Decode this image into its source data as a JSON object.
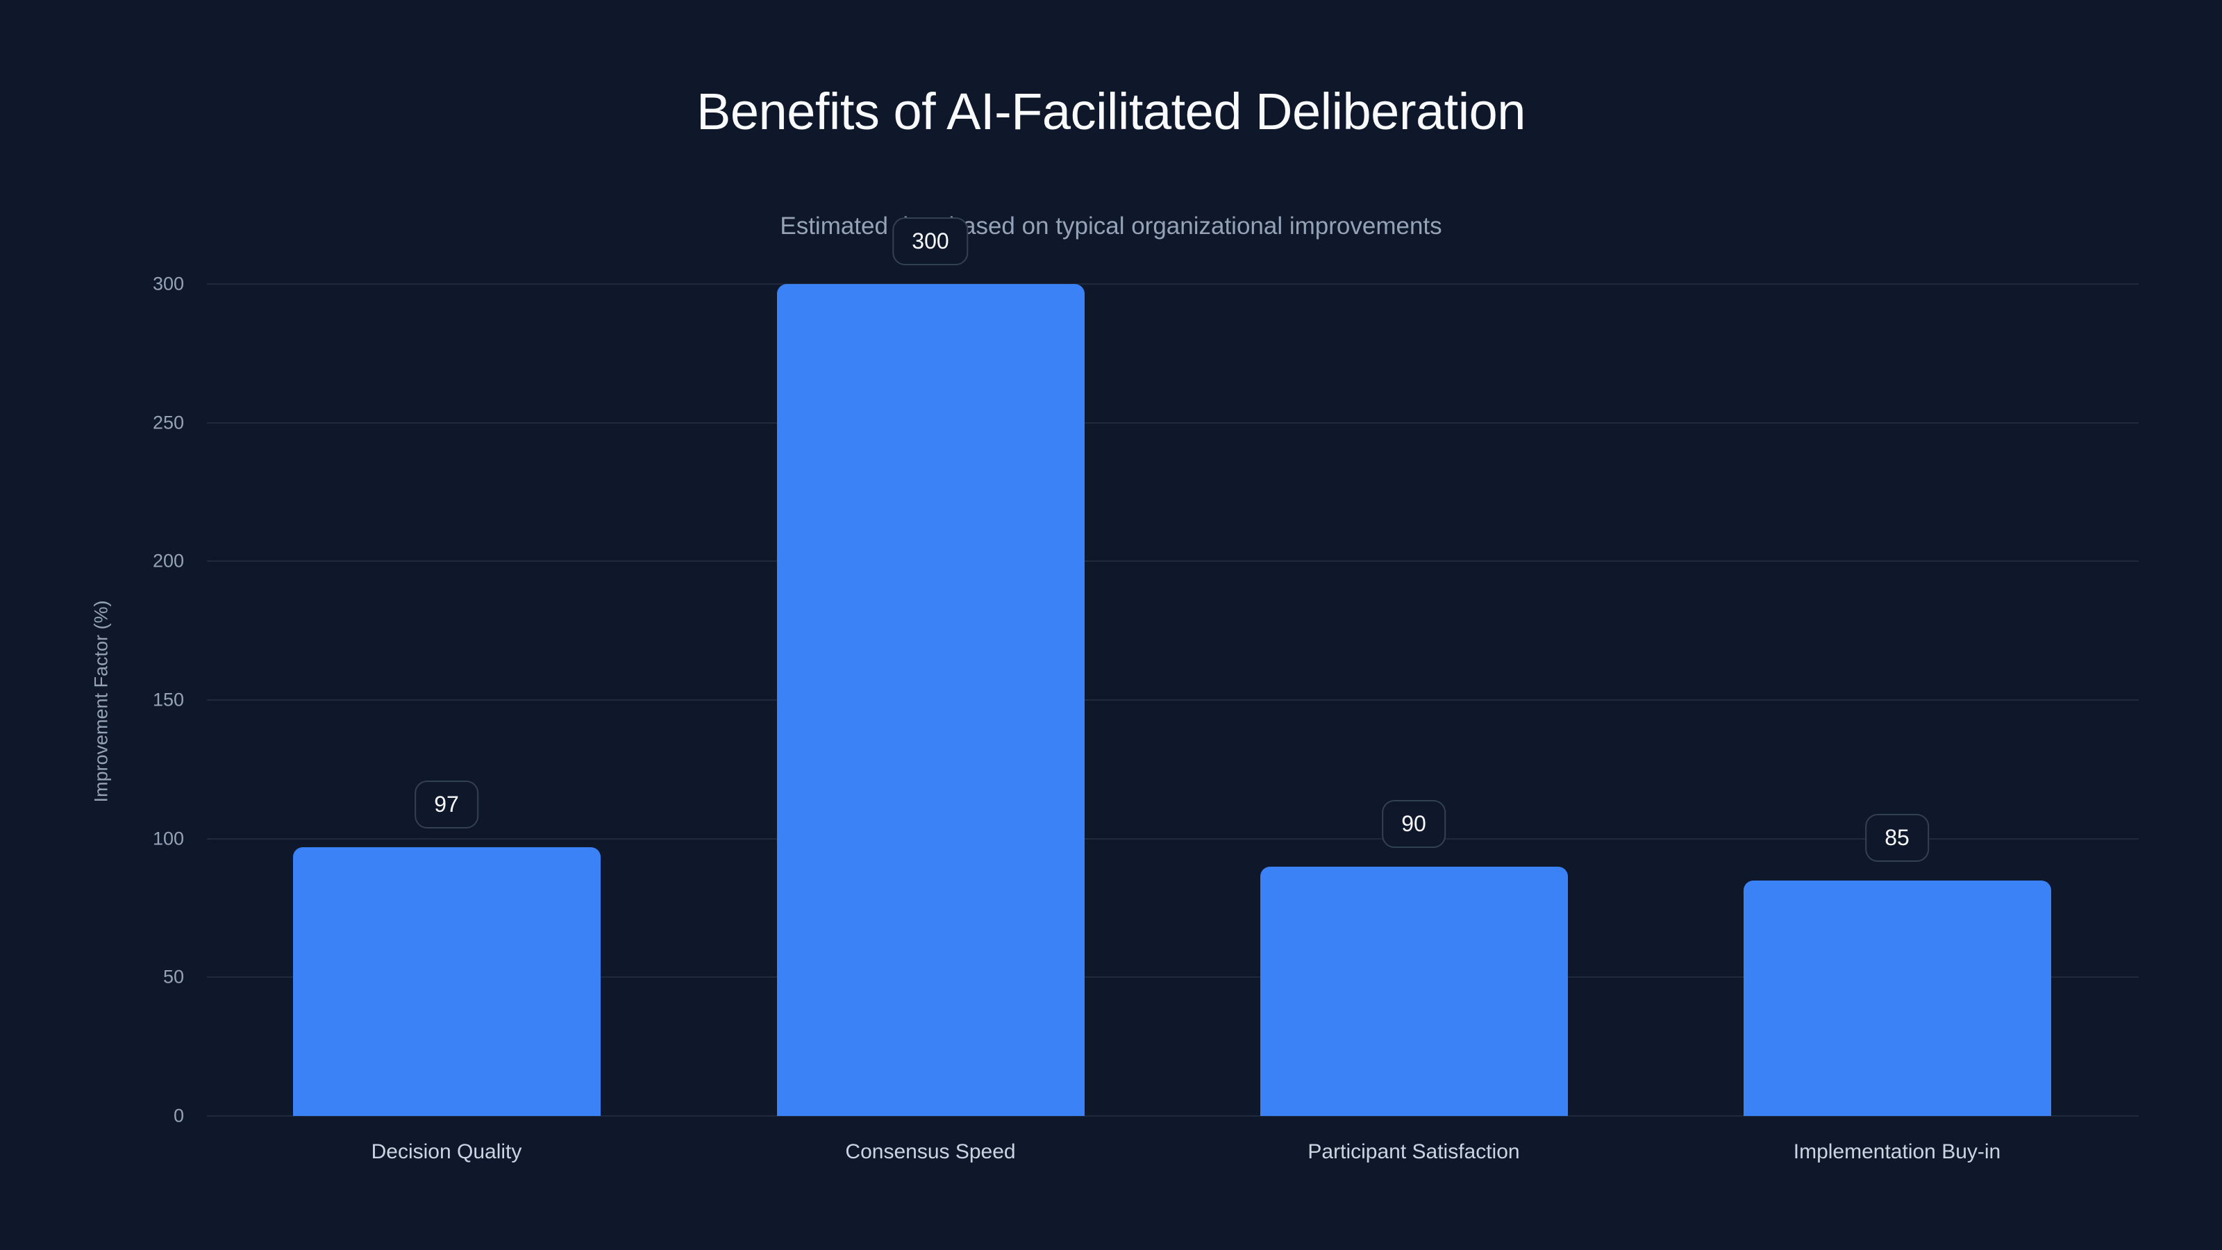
{
  "chart_data": {
    "type": "bar",
    "title": "Benefits of AI-Facilitated Deliberation",
    "subtitle": "Estimated data based on typical organizational improvements",
    "xlabel": "",
    "ylabel": "Improvement Factor (%)",
    "categories": [
      "Decision Quality",
      "Consensus Speed",
      "Participant Satisfaction",
      "Implementation Buy-in"
    ],
    "values": [
      97,
      300,
      90,
      85
    ],
    "value_labels": [
      "97",
      "300",
      "90",
      "85"
    ],
    "ylim": [
      0,
      300
    ],
    "yticks": [
      "0",
      "50",
      "100",
      "150",
      "200",
      "250",
      "300"
    ],
    "grid": true,
    "legend": null,
    "colors": {
      "bar": "#3b82f6",
      "background": "#0f172a",
      "grid": "#1e293b"
    }
  }
}
